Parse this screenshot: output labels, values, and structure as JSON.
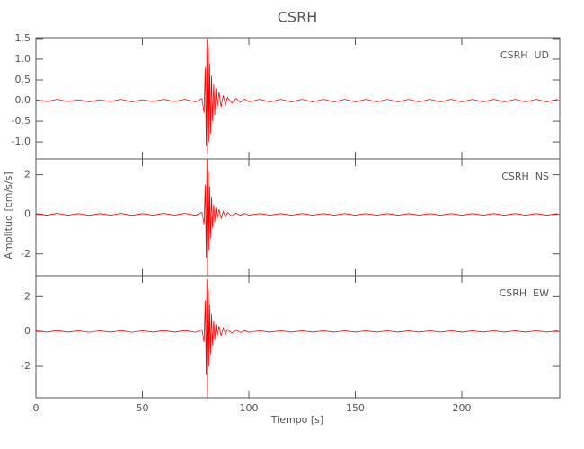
{
  "chart_data": [
    {
      "type": "line",
      "title": "CSRH",
      "annotation": "CSRH  UD",
      "x": [
        0,
        5,
        10,
        15,
        20,
        25,
        30,
        35,
        40,
        45,
        50,
        55,
        60,
        65,
        70,
        75,
        78,
        79,
        79.5,
        80,
        80.3,
        80.6,
        81,
        81.3,
        81.6,
        82,
        82.5,
        83,
        83.5,
        84,
        84.5,
        85,
        86,
        87,
        88,
        89,
        90,
        92,
        94,
        96,
        98,
        100,
        105,
        110,
        115,
        120,
        125,
        130,
        135,
        140,
        145,
        150,
        155,
        160,
        165,
        170,
        175,
        180,
        185,
        190,
        195,
        200,
        205,
        210,
        215,
        220,
        225,
        230,
        235,
        240,
        245
      ],
      "xlim": [
        0,
        246
      ],
      "ylim": [
        -1.41,
        1.52
      ],
      "yticks": [
        {
          "value": -1.0,
          "label": "-1.0"
        },
        -0.5,
        {
          "value": 0,
          "label": "0.0"
        },
        0.5,
        {
          "value": 1.0,
          "label": "1.0"
        },
        1.5
      ],
      "series": [
        {
          "color": "#ff0000",
          "values": [
            0.02,
            -0.02,
            0.03,
            -0.02,
            0.02,
            -0.03,
            0.02,
            -0.02,
            0.03,
            -0.03,
            0.02,
            -0.02,
            0.03,
            -0.02,
            0.03,
            -0.03,
            0.05,
            -0.3,
            0.8,
            -1.1,
            1.5,
            -1.3,
            1.3,
            -1.0,
            0.9,
            -0.8,
            0.6,
            -0.5,
            0.4,
            -0.35,
            0.3,
            -0.25,
            0.2,
            -0.15,
            0.12,
            -0.1,
            0.08,
            -0.06,
            0.05,
            -0.04,
            0.04,
            -0.03,
            0.03,
            -0.03,
            0.03,
            -0.03,
            0.03,
            -0.03,
            0.03,
            -0.03,
            0.03,
            -0.03,
            0.03,
            -0.03,
            0.03,
            -0.03,
            0.03,
            -0.03,
            0.03,
            -0.03,
            0.03,
            -0.03,
            0.03,
            -0.03,
            0.03,
            -0.03,
            0.03,
            -0.03,
            0.03,
            -0.03,
            0.03
          ]
        }
      ]
    },
    {
      "type": "line",
      "annotation": "CSRH  NS",
      "ylabel": "Amplitud [cm/s/s]",
      "xlim": [
        0,
        246
      ],
      "ylim": [
        -3.1,
        2.8
      ],
      "yticks": [
        -2,
        0,
        2
      ],
      "series": [
        {
          "color": "#ff0000",
          "values": [
            0.04,
            -0.04,
            0.05,
            -0.04,
            0.04,
            -0.05,
            0.04,
            -0.04,
            0.05,
            -0.05,
            0.04,
            -0.04,
            0.05,
            -0.04,
            0.05,
            -0.05,
            0.1,
            -0.5,
            1.5,
            -2.2,
            2.8,
            -3.1,
            2.2,
            -1.8,
            1.4,
            -1.2,
            0.9,
            -0.7,
            0.5,
            -0.4,
            0.35,
            -0.3,
            0.25,
            -0.2,
            0.15,
            -0.12,
            0.1,
            -0.08,
            0.06,
            -0.05,
            0.05,
            -0.04,
            0.04,
            -0.04,
            0.04,
            -0.04,
            0.04,
            -0.04,
            0.04,
            -0.04,
            0.04,
            -0.04,
            0.04,
            -0.04,
            0.04,
            -0.04,
            0.04,
            -0.04,
            0.04,
            -0.04,
            0.04,
            -0.04,
            0.04,
            -0.04,
            0.04,
            -0.04,
            0.04,
            -0.04,
            0.04,
            -0.04,
            0.04
          ]
        }
      ]
    },
    {
      "type": "line",
      "annotation": "CSRH  EW",
      "xlabel": "Tiempo [s]",
      "xlim": [
        0,
        246
      ],
      "xticks": [
        0,
        50,
        100,
        150,
        200
      ],
      "ylim": [
        -3.8,
        3.2
      ],
      "yticks": [
        -2,
        0,
        2
      ],
      "series": [
        {
          "color": "#ff0000",
          "values": [
            0.04,
            -0.04,
            0.05,
            -0.04,
            0.04,
            -0.05,
            0.04,
            -0.04,
            0.05,
            -0.05,
            0.04,
            -0.04,
            0.05,
            -0.04,
            0.05,
            -0.05,
            0.1,
            -0.6,
            1.8,
            -2.5,
            3.0,
            -3.8,
            2.4,
            -2.0,
            1.5,
            -1.3,
            1.0,
            -0.8,
            0.6,
            -0.5,
            0.4,
            -0.35,
            0.3,
            -0.25,
            0.2,
            -0.15,
            0.12,
            -0.1,
            0.08,
            -0.06,
            0.05,
            -0.05,
            0.04,
            -0.04,
            0.04,
            -0.04,
            0.04,
            -0.04,
            0.04,
            -0.04,
            0.04,
            -0.04,
            0.04,
            -0.04,
            0.04,
            -0.04,
            0.04,
            -0.04,
            0.04,
            -0.04,
            0.04,
            -0.04,
            0.04,
            -0.04,
            0.04,
            -0.04,
            0.04,
            -0.04,
            0.04,
            -0.04,
            0.04
          ]
        }
      ]
    }
  ]
}
